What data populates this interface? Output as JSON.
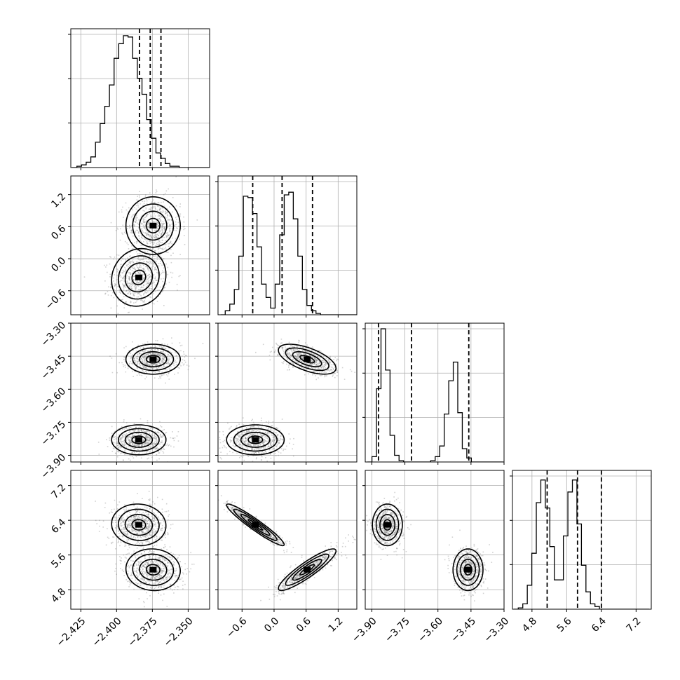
{
  "chart_data": {
    "type": "corner",
    "n_params": 4,
    "ranges": [
      [
        -2.432,
        -2.335
      ],
      [
        -1.05,
        1.55
      ],
      [
        -3.93,
        -3.3
      ],
      [
        4.35,
        7.55
      ]
    ],
    "ticks": [
      {
        "values": [
          -2.425,
          -2.4,
          -2.375,
          -2.35
        ],
        "labels": [
          "−2.425",
          "−2.400",
          "−2.375",
          "−2.350"
        ]
      },
      {
        "values": [
          -0.6,
          0.0,
          0.6,
          1.2
        ],
        "labels": [
          "−0.6",
          "0.0",
          "0.6",
          "1.2"
        ]
      },
      {
        "values": [
          -3.9,
          -3.75,
          -3.6,
          -3.45,
          -3.3
        ],
        "labels": [
          "−3.90",
          "−3.75",
          "−3.60",
          "−3.45",
          "−3.30"
        ]
      },
      {
        "values": [
          4.8,
          5.6,
          6.4,
          7.2
        ],
        "labels": [
          "4.8",
          "5.6",
          "6.4",
          "7.2"
        ]
      }
    ],
    "hist_ylim": [
      [
        0,
        1.0
      ],
      [
        0,
        1.0
      ],
      [
        0,
        1.0
      ],
      [
        0,
        1.0
      ]
    ],
    "histograms": [
      {
        "edges_start": -2.431,
        "bin_width": 0.00325,
        "counts": [
          0.0,
          0.01,
          0.02,
          0.04,
          0.08,
          0.19,
          0.33,
          0.46,
          0.62,
          0.82,
          0.93,
          0.99,
          0.98,
          0.82,
          0.67,
          0.55,
          0.36,
          0.22,
          0.11,
          0.07,
          0.03,
          0.01,
          0.01,
          0.0,
          0.0,
          0.0,
          0.0,
          0.0,
          0.0,
          0.0
        ]
      },
      {
        "edges_start": -1.0,
        "bin_width": 0.085,
        "counts": [
          0.0,
          0.03,
          0.08,
          0.19,
          0.44,
          0.89,
          0.88,
          0.76,
          0.51,
          0.23,
          0.13,
          0.05,
          0.23,
          0.6,
          0.9,
          0.92,
          0.72,
          0.44,
          0.19,
          0.07,
          0.03,
          0.01,
          0.0,
          0.0,
          0.0,
          0.0,
          0.0,
          0.0,
          0.0,
          0.0
        ]
      },
      {
        "edges_start": -3.92,
        "bin_width": 0.0205,
        "counts": [
          0.0,
          0.04,
          0.55,
          1.0,
          0.69,
          0.2,
          0.05,
          0.01,
          0.0,
          0.0,
          0.0,
          0.0,
          0.0,
          0.0,
          0.0,
          0.0,
          0.0,
          0.0,
          0.0,
          0.0,
          0.0,
          0.0,
          0.0,
          0.0,
          0.0,
          0.0,
          0.0,
          0.0,
          0.0,
          0.0
        ],
        "counts_full": [
          0.0,
          0.04,
          0.55,
          1.0,
          0.69,
          0.2,
          0.05,
          0.01,
          0.0,
          0.0,
          0.0,
          0.0,
          0.0,
          0.0,
          0.01,
          0.04,
          0.12,
          0.36,
          0.61,
          0.75,
          0.37,
          0.1,
          0.03,
          0.0,
          0.0,
          0.0,
          0.0,
          0.0,
          0.0,
          0.0
        ]
      },
      {
        "edges_start": 4.38,
        "bin_width": 0.104,
        "counts": [
          0.0,
          0.01,
          0.04,
          0.18,
          0.42,
          0.8,
          0.97,
          0.76,
          0.47,
          0.22,
          0.22,
          0.55,
          0.88,
          0.97,
          0.64,
          0.33,
          0.13,
          0.04,
          0.02,
          0.0,
          0.0,
          0.0,
          0.0,
          0.0,
          0.0,
          0.0,
          0.0,
          0.0,
          0.0,
          0.0
        ]
      }
    ],
    "quantiles": [
      [
        -2.384,
        -2.3765,
        -2.369
      ],
      [
        -0.4,
        0.15,
        0.72
      ],
      [
        -3.87,
        -3.72,
        -3.46
      ],
      [
        5.15,
        5.85,
        6.4
      ]
    ],
    "clusters": [
      {
        "center": [
          -2.3845,
          -0.35,
          -3.8295,
          6.295
        ],
        "sd": [
          0.0095,
          0.27,
          0.034,
          0.24
        ],
        "r12": 0.1,
        "r13": 0.0,
        "r14": -0.05,
        "r23": 0.0,
        "r24": -0.95,
        "r34": 0.0
      },
      {
        "center": [
          -2.3745,
          0.62,
          -3.4635,
          5.26
        ],
        "sd": [
          0.0095,
          0.27,
          0.034,
          0.24
        ],
        "r12": 0.0,
        "r13": 0.0,
        "r14": -0.05,
        "r23": -0.6,
        "r24": 0.9,
        "r34": 0.0
      }
    ],
    "contour_sigmas": [
      0.5,
      1.0,
      1.5,
      2.0
    ],
    "grid": true
  }
}
